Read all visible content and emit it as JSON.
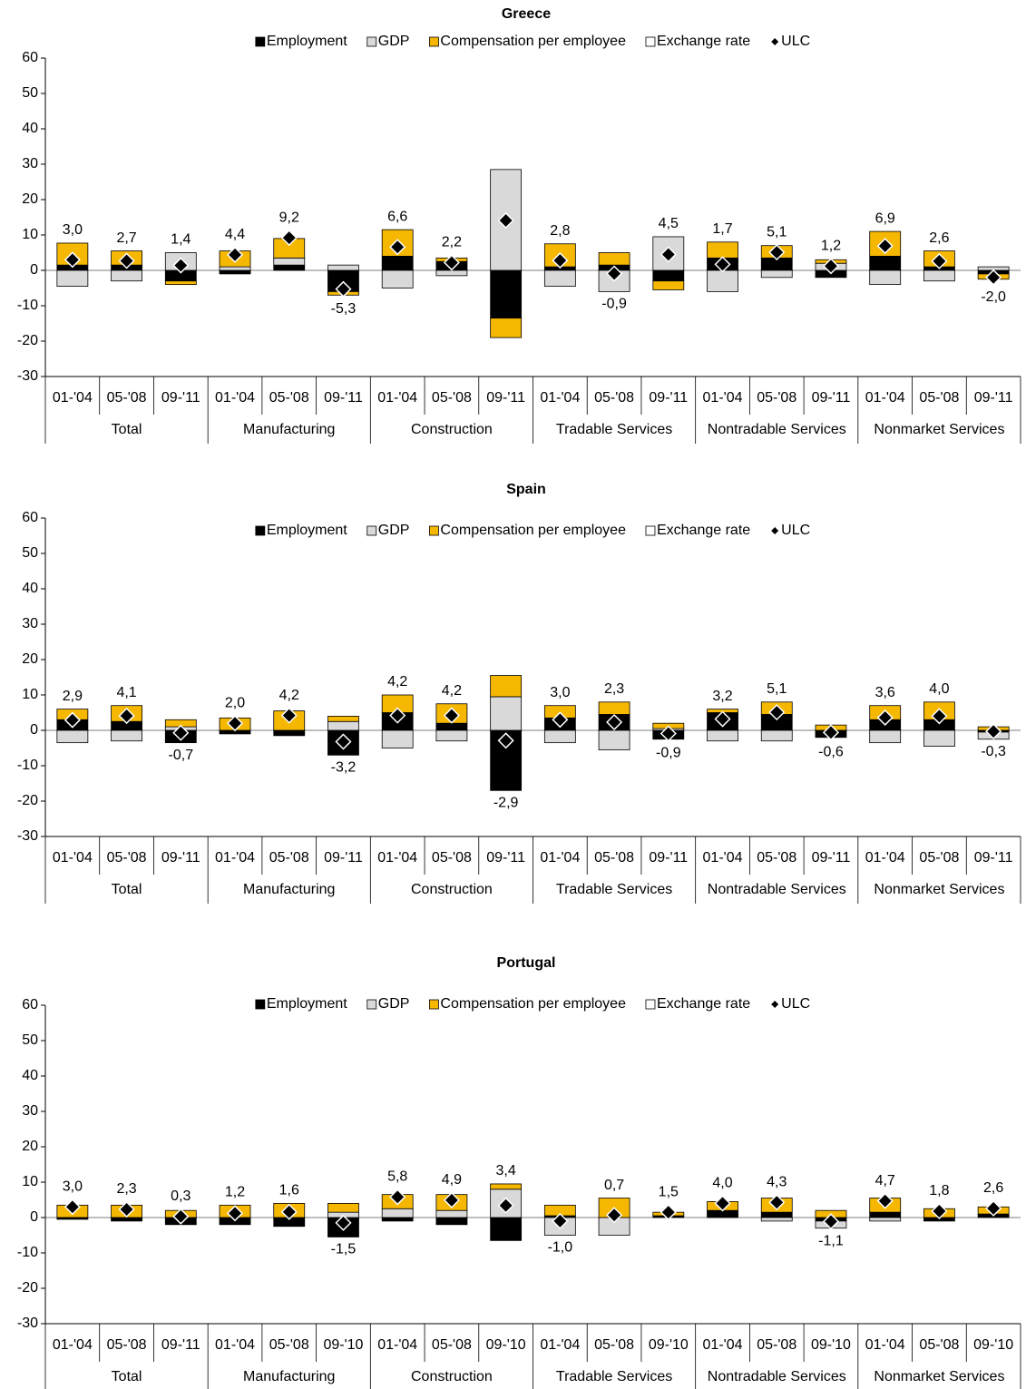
{
  "chart_data": [
    {
      "type": "stacked_bar",
      "title": "Greece",
      "categories": [
        "01-'04",
        "05-'08",
        "09-'11",
        "01-'04",
        "05-'08",
        "09-'11",
        "01-'04",
        "05-'08",
        "09-'11",
        "01-'04",
        "05-'08",
        "09-'11",
        "01-'04",
        "05-'08",
        "09-'11",
        "01-'04",
        "05-'08",
        "09-'11"
      ],
      "groups": [
        "Total",
        "Manufacturing",
        "Construction",
        "Tradable Services",
        "Nontradable Services",
        "Nonmarket Services"
      ],
      "ylim": [
        -30,
        60
      ],
      "yticks": [
        -30,
        -20,
        -10,
        0,
        10,
        20,
        30,
        40,
        50,
        60
      ],
      "legend_position": "top",
      "series": [
        {
          "name": "Employment",
          "type": "bar",
          "color": "#000000",
          "values": [
            1.5,
            1.5,
            -3,
            -1,
            1.5,
            -6,
            4,
            2.5,
            -13.5,
            1,
            1.5,
            -3,
            3.5,
            3.5,
            -2,
            4,
            1,
            -1
          ]
        },
        {
          "name": "GDP",
          "type": "bar",
          "color": "#d9d9d9",
          "values": [
            -4.5,
            -3,
            5,
            1,
            2,
            1.5,
            -5,
            -1.5,
            28.5,
            -4.5,
            -6,
            9.5,
            -6,
            -2,
            2,
            -4,
            -3,
            1
          ]
        },
        {
          "name": "Compensation per employee",
          "type": "bar",
          "color": "#f5b700",
          "values": [
            6.2,
            4,
            -1,
            4.5,
            5.5,
            -1,
            7.5,
            1,
            -5.5,
            6.5,
            3.5,
            -2.5,
            4.5,
            3.5,
            1,
            7,
            4.5,
            -1.5
          ]
        },
        {
          "name": "Exchange rate",
          "type": "bar",
          "color": "#ffffff",
          "values": [
            0,
            0,
            0,
            0,
            0,
            0,
            0,
            0,
            0,
            0,
            0,
            0,
            0,
            0,
            0,
            0,
            0,
            0
          ]
        },
        {
          "name": "ULC",
          "type": "diamond",
          "color": "#000000",
          "values": [
            3.0,
            2.7,
            1.4,
            4.4,
            9.2,
            -5.3,
            6.6,
            2.2,
            14.1,
            2.8,
            -0.9,
            4.5,
            1.7,
            5.1,
            1.2,
            6.9,
            2.6,
            -2.0
          ],
          "value_labels": [
            "3,0",
            "2,7",
            "1,4",
            "4,4",
            "9,2",
            "-5,3",
            "6,6",
            "2,2",
            null,
            "2,8",
            "-0,9",
            "4,5",
            "1,7",
            "5,1",
            "1,2",
            "6,9",
            "2,6",
            "-2,0"
          ]
        }
      ]
    },
    {
      "type": "stacked_bar",
      "title": "Spain",
      "categories": [
        "01-'04",
        "05-'08",
        "09-'11",
        "01-'04",
        "05-'08",
        "09-'11",
        "01-'04",
        "05-'08",
        "09-'11",
        "01-'04",
        "05-'08",
        "09-'11",
        "01-'04",
        "05-'08",
        "09-'11",
        "01-'04",
        "05-'08",
        "09-'11"
      ],
      "groups": [
        "Total",
        "Manufacturing",
        "Construction",
        "Tradable Services",
        "Nontradable Services",
        "Nonmarket Services"
      ],
      "ylim": [
        -30,
        60
      ],
      "yticks": [
        -30,
        -20,
        -10,
        0,
        10,
        20,
        30,
        40,
        50,
        60
      ],
      "legend_position": "top",
      "series": [
        {
          "name": "Employment",
          "type": "bar",
          "color": "#000000",
          "values": [
            3,
            2.5,
            -3.5,
            -1,
            -1.5,
            -7,
            5,
            2,
            -17,
            3.5,
            4.5,
            -2.5,
            5,
            4.5,
            -2,
            3,
            3,
            -0.5
          ]
        },
        {
          "name": "GDP",
          "type": "bar",
          "color": "#d9d9d9",
          "values": [
            -3.5,
            -3,
            1,
            0,
            0,
            2.5,
            -5,
            -3,
            9.5,
            -3.5,
            -5.5,
            0.5,
            -3,
            -3,
            0,
            -3.5,
            -4.5,
            -2
          ]
        },
        {
          "name": "Compensation per employee",
          "type": "bar",
          "color": "#f5b700",
          "values": [
            3,
            4.5,
            2,
            3.5,
            5.5,
            1.5,
            5,
            5.5,
            6,
            3.5,
            3.5,
            1.5,
            1,
            3.5,
            1.5,
            4,
            5,
            1
          ]
        },
        {
          "name": "Exchange rate",
          "type": "bar",
          "color": "#ffffff",
          "values": [
            0,
            0,
            0,
            0,
            0,
            0,
            0,
            0,
            0,
            0,
            0,
            0,
            0,
            0,
            0,
            0,
            0,
            0
          ]
        },
        {
          "name": "ULC",
          "type": "diamond",
          "color": "#000000",
          "values": [
            2.9,
            4.1,
            -0.7,
            2.0,
            4.2,
            -3.2,
            4.2,
            4.2,
            -2.9,
            3.0,
            2.3,
            -0.9,
            3.2,
            5.1,
            -0.6,
            3.6,
            4.0,
            -0.3
          ],
          "value_labels": [
            "2,9",
            "4,1",
            "-0,7",
            "2,0",
            "4,2",
            "-3,2",
            "4,2",
            "4,2",
            "-2,9",
            "3,0",
            "2,3",
            "-0,9",
            "3,2",
            "5,1",
            "-0,6",
            "3,6",
            "4,0",
            "-0,3"
          ]
        }
      ]
    },
    {
      "type": "stacked_bar",
      "title": "Portugal",
      "categories": [
        "01-'04",
        "05-'08",
        "09-'11",
        "01-'04",
        "05-'08",
        "09-'10",
        "01-'04",
        "05-'08",
        "09-'10",
        "01-'04",
        "05-'08",
        "09-'10",
        "01-'04",
        "05-'08",
        "09-'10",
        "01-'04",
        "05-'08",
        "09-'10"
      ],
      "groups": [
        "Total",
        "Manufacturing",
        "Construction",
        "Tradable Services",
        "Nontradable Services",
        "Nonmarket Services"
      ],
      "ylim": [
        -30,
        60
      ],
      "yticks": [
        -30,
        -20,
        -10,
        0,
        10,
        20,
        30,
        40,
        50,
        60
      ],
      "legend_position": "top",
      "series": [
        {
          "name": "Employment",
          "type": "bar",
          "color": "#000000",
          "values": [
            -0.5,
            -1,
            -2,
            -2,
            -2.5,
            -5.5,
            -1,
            -2,
            -6.5,
            0.5,
            0,
            0.5,
            2,
            1.5,
            -1,
            1.5,
            -1,
            1
          ]
        },
        {
          "name": "GDP",
          "type": "bar",
          "color": "#d9d9d9",
          "values": [
            0,
            0,
            0,
            0,
            0,
            1.5,
            2.5,
            2,
            8,
            -5,
            -5,
            0,
            0,
            -1,
            -2,
            -1,
            0,
            0
          ]
        },
        {
          "name": "Compensation per employee",
          "type": "bar",
          "color": "#f5b700",
          "values": [
            3.5,
            3.5,
            2,
            3.5,
            4,
            2.5,
            4,
            4.5,
            1.5,
            3,
            5.5,
            1,
            2.5,
            4,
            2,
            4,
            2.5,
            2
          ]
        },
        {
          "name": "Exchange rate",
          "type": "bar",
          "color": "#ffffff",
          "values": [
            0,
            0,
            0,
            0,
            0,
            0,
            0,
            0,
            0,
            0,
            0,
            0,
            0,
            0,
            0,
            0,
            0,
            0
          ]
        },
        {
          "name": "ULC",
          "type": "diamond",
          "color": "#000000",
          "values": [
            3.0,
            2.3,
            0.3,
            1.2,
            1.6,
            -1.5,
            5.8,
            4.9,
            3.4,
            -1.0,
            0.7,
            1.5,
            4.0,
            4.3,
            -1.1,
            4.7,
            1.8,
            2.6
          ],
          "value_labels": [
            "3,0",
            "2,3",
            "0,3",
            "1,2",
            "1,6",
            "-1,5",
            "5,8",
            "4,9",
            "3,4",
            "-1,0",
            "0,7",
            "1,5",
            "4,0",
            "4,3",
            "-1,1",
            "4,7",
            "1,8",
            "2,6"
          ]
        }
      ]
    }
  ]
}
